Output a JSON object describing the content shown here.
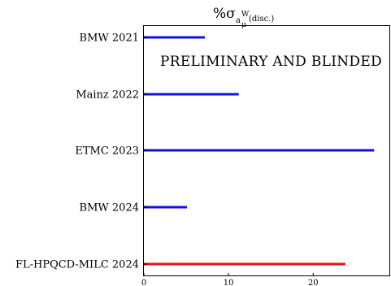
{
  "chart_data": {
    "type": "bar",
    "orientation": "horizontal",
    "title": {
      "prefix": "%σ",
      "sub": "a",
      "subsub": "μ",
      "sup": "W",
      "tail": "(disc.)"
    },
    "annotation": "PRELIMINARY AND BLINDED",
    "categories": [
      "BMW 2021",
      "Mainz 2022",
      "ETMC 2023",
      "BMW 2024",
      "FL-HPQCD-MILC 2024"
    ],
    "values": [
      7.2,
      11.2,
      27.2,
      5.1,
      23.8
    ],
    "bar_colors": [
      "#1010e0",
      "#1010e0",
      "#1010e0",
      "#1010e0",
      "#e81010"
    ],
    "xlim": [
      0,
      29.0
    ],
    "xticks": [
      0,
      10,
      20
    ],
    "xtick_labels": [
      "0",
      "10",
      "20"
    ],
    "grid": false
  }
}
